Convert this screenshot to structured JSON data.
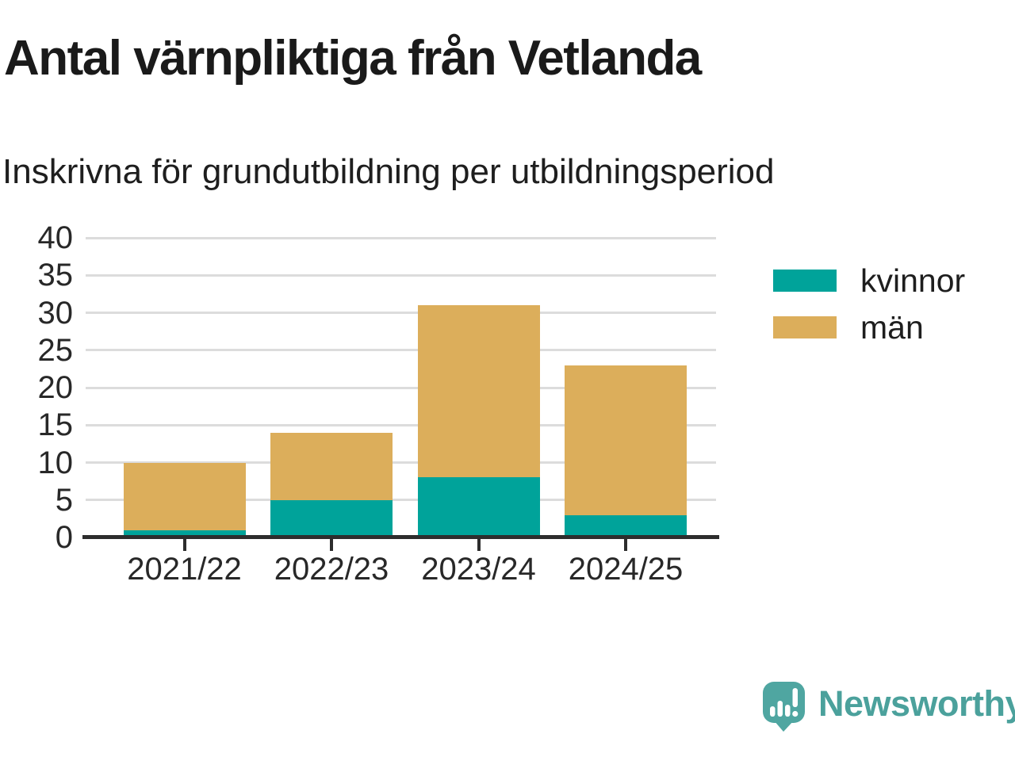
{
  "chart_data": {
    "type": "bar",
    "stacked": true,
    "title": "Antal värnpliktiga från Vetlanda",
    "subtitle": "Inskrivna för grundutbildning per utbildningsperiod",
    "categories": [
      "2021/22",
      "2022/23",
      "2023/24",
      "2024/25"
    ],
    "series": [
      {
        "name": "kvinnor",
        "color": "#00a39a",
        "values": [
          1,
          5,
          8,
          3
        ]
      },
      {
        "name": "män",
        "color": "#dcae5b",
        "values": [
          9,
          9,
          23,
          20
        ]
      }
    ],
    "totals": [
      10,
      14,
      31,
      23
    ],
    "xlabel": "",
    "ylabel": "",
    "ylim": [
      0,
      40
    ],
    "ytick_step": 5,
    "y_ticks": [
      0,
      5,
      10,
      15,
      20,
      25,
      30,
      35,
      40
    ],
    "grid": true,
    "legend_position": "right",
    "colors": {
      "grid": "#dcdcdc",
      "axis": "#2d2d2d",
      "text": "#282828"
    }
  },
  "branding": {
    "name": "Newsworthy",
    "logo_icon": "speech-bubble-bar-chart-icon",
    "color": "#4BA19C"
  }
}
